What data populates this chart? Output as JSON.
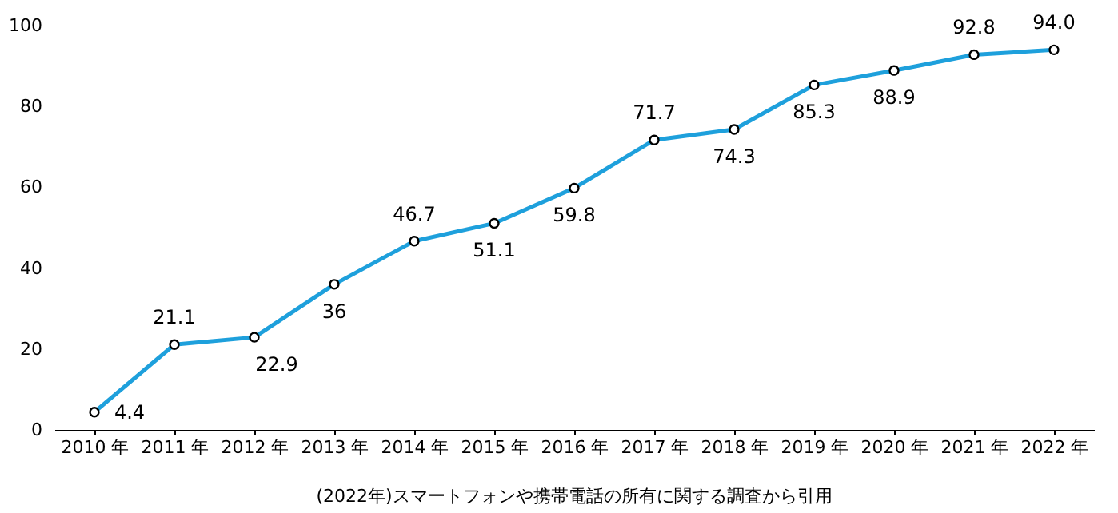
{
  "chart_data": {
    "type": "line",
    "categories": [
      "2010 年",
      "2011 年",
      "2012 年",
      "2013 年",
      "2014 年",
      "2015 年",
      "2016 年",
      "2017 年",
      "2018 年",
      "2019 年",
      "2020 年",
      "2021 年",
      "2022 年"
    ],
    "series": [
      {
        "color": "#1ea0dc",
        "values": [
          4.4,
          21.1,
          22.9,
          36,
          46.7,
          51.1,
          59.8,
          71.7,
          74.3,
          85.3,
          88.9,
          92.8,
          94.0
        ],
        "value_labels": [
          "4.4",
          "21.1",
          "22.9",
          "36",
          "46.7",
          "51.1",
          "59.8",
          "71.7",
          "74.3",
          "85.3",
          "88.9",
          "92.8",
          "94.0"
        ]
      }
    ],
    "ylim": [
      0,
      100
    ],
    "yticks": [
      0,
      20,
      40,
      60,
      80,
      100
    ],
    "grid": false,
    "marker": "circle",
    "line_style": "solid",
    "annotations": [
      "(2022年)スマートフォンや携帯電話の所有に関する調査から引用"
    ]
  }
}
